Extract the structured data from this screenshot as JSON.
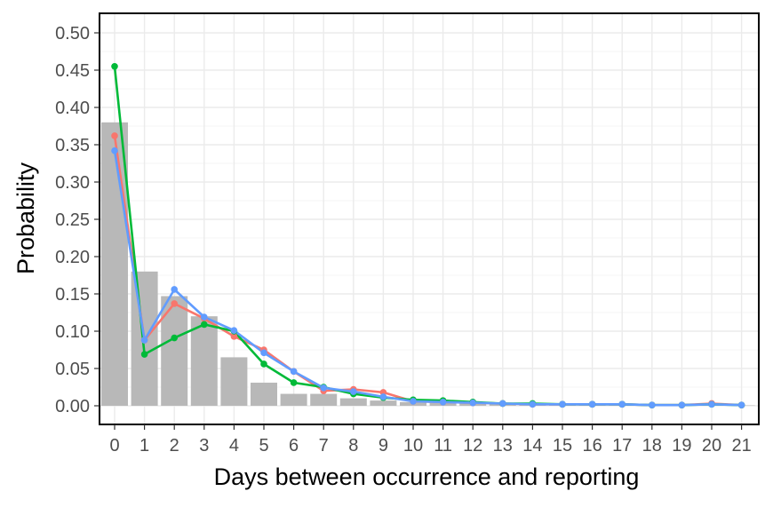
{
  "chart_data": {
    "type": "bar",
    "title": "",
    "xlabel": "Days between occurrence and reporting",
    "ylabel": "Probability",
    "categories": [
      "0",
      "1",
      "2",
      "3",
      "4",
      "5",
      "6",
      "7",
      "8",
      "9",
      "10",
      "11",
      "12",
      "13",
      "14",
      "15",
      "16",
      "17",
      "18",
      "19",
      "20",
      "21"
    ],
    "ylim": [
      0,
      0.5
    ],
    "yticks": [
      "0.00",
      "0.05",
      "0.10",
      "0.15",
      "0.20",
      "0.25",
      "0.30",
      "0.35",
      "0.40",
      "0.45",
      "0.50"
    ],
    "grid": true,
    "legend": "none",
    "bars": {
      "color": "#b8b8b8",
      "values": [
        0.38,
        0.18,
        0.147,
        0.12,
        0.065,
        0.031,
        0.016,
        0.016,
        0.01,
        0.007,
        0.005,
        0.004,
        0.003,
        0.002,
        0.002,
        0.001,
        0.001,
        0.001,
        0.0005,
        0.0005,
        0.0005,
        0.0005
      ]
    },
    "series": [
      {
        "color": "#f8766d",
        "values": [
          0.362,
          0.088,
          0.137,
          0.117,
          0.093,
          0.075,
          0.046,
          0.02,
          0.022,
          0.018,
          0.006,
          0.005,
          0.004,
          0.003,
          0.002,
          0.002,
          0.002,
          0.002,
          0.001,
          0.001,
          0.003,
          0.001
        ]
      },
      {
        "color": "#00ba38",
        "values": [
          0.455,
          0.069,
          0.091,
          0.109,
          0.1,
          0.056,
          0.031,
          0.025,
          0.016,
          0.011,
          0.008,
          0.007,
          0.005,
          0.003,
          0.003,
          0.002,
          0.002,
          0.002,
          0.001,
          0.001,
          0.002,
          0.001
        ]
      },
      {
        "color": "#619cff",
        "values": [
          0.342,
          0.088,
          0.156,
          0.119,
          0.101,
          0.071,
          0.046,
          0.024,
          0.019,
          0.012,
          0.006,
          0.005,
          0.004,
          0.003,
          0.002,
          0.002,
          0.002,
          0.002,
          0.001,
          0.001,
          0.002,
          0.001
        ]
      }
    ]
  }
}
